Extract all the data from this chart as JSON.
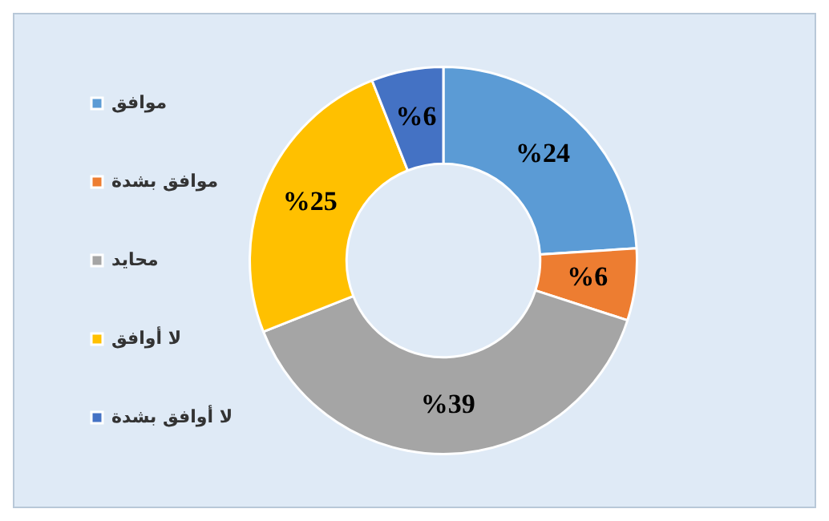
{
  "chart_data": {
    "type": "donut",
    "categories": [
      "موافق",
      "موافق بشدة",
      "محايد",
      "لا أوافق",
      "لا أوافق بشدة"
    ],
    "values": [
      24,
      6,
      39,
      25,
      6
    ],
    "colors": [
      "#5b9bd5",
      "#ed7d31",
      "#a5a5a5",
      "#ffc000",
      "#4472c4"
    ],
    "value_labels": [
      "%24",
      "%6",
      "%39",
      "%25",
      "%6"
    ],
    "legend": "left"
  }
}
